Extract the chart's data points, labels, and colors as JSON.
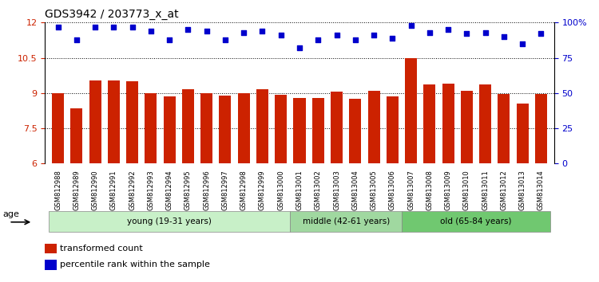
{
  "title": "GDS3942 / 203773_x_at",
  "samples": [
    "GSM812988",
    "GSM812989",
    "GSM812990",
    "GSM812991",
    "GSM812992",
    "GSM812993",
    "GSM812994",
    "GSM812995",
    "GSM812996",
    "GSM812997",
    "GSM812998",
    "GSM812999",
    "GSM813000",
    "GSM813001",
    "GSM813002",
    "GSM813003",
    "GSM813004",
    "GSM813005",
    "GSM813006",
    "GSM813007",
    "GSM813008",
    "GSM813009",
    "GSM813010",
    "GSM813011",
    "GSM813012",
    "GSM813013",
    "GSM813014"
  ],
  "bar_values": [
    9.0,
    8.35,
    9.55,
    9.55,
    9.5,
    9.0,
    8.85,
    9.15,
    8.98,
    8.88,
    9.0,
    9.15,
    8.92,
    8.78,
    8.78,
    9.05,
    8.77,
    9.1,
    8.85,
    10.47,
    9.35,
    9.4,
    9.1,
    9.35,
    8.97,
    8.55,
    8.97
  ],
  "percentile_values": [
    97,
    88,
    97,
    97,
    97,
    94,
    88,
    95,
    94,
    88,
    93,
    94,
    91,
    82,
    88,
    91,
    88,
    91,
    89,
    98,
    93,
    95,
    92,
    93,
    90,
    85,
    92
  ],
  "groups": [
    {
      "label": "young (19-31 years)",
      "start": 0,
      "end": 13,
      "color": "#c8f0c8"
    },
    {
      "label": "middle (42-61 years)",
      "start": 13,
      "end": 19,
      "color": "#a0d8a0"
    },
    {
      "label": "old (65-84 years)",
      "start": 19,
      "end": 27,
      "color": "#70c870"
    }
  ],
  "ylim_left": [
    6,
    12
  ],
  "ylim_right": [
    0,
    100
  ],
  "yticks_left": [
    6,
    7.5,
    9,
    10.5,
    12
  ],
  "yticks_right": [
    0,
    25,
    50,
    75,
    100
  ],
  "bar_color": "#cc2200",
  "dot_color": "#0000cc",
  "background_color": "#ffffff",
  "age_label": "age",
  "legend_bar_label": "transformed count",
  "legend_dot_label": "percentile rank within the sample"
}
